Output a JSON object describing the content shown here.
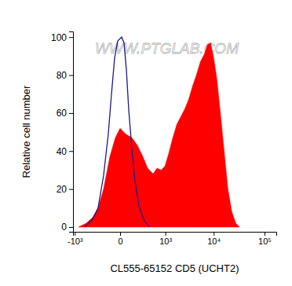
{
  "chart_data": {
    "type": "histogram",
    "x_label": "CL555-65152 CD5 (UCHT2)",
    "y_label": "Relative cell number",
    "annotations": [
      "WWW.PTGLAB.COM"
    ],
    "log": "x",
    "xlim": [
      -1100,
      170000
    ],
    "xticks": [
      {
        "value": -1000,
        "label": "-10³"
      },
      0,
      {
        "value": 1000,
        "label": "10³"
      },
      {
        "value": 10000,
        "label": "10⁴"
      },
      {
        "value": 100000,
        "label": "10⁵"
      }
    ],
    "ylim": [
      -2.5,
      103
    ],
    "yticks": [
      0,
      20,
      40,
      60,
      80,
      100
    ],
    "series": [
      {
        "type": "area",
        "color": "#ff0000",
        "x": [
          -831,
          -538,
          -368,
          -255,
          -166,
          -88,
          -36,
          0,
          42,
          105,
          177,
          269,
          368,
          514,
          642,
          796,
          980,
          1198,
          1461,
          1773,
          2145,
          2590,
          3120,
          3750,
          4510,
          5415,
          6495,
          7505,
          8670,
          10010,
          11550,
          13340,
          15960,
          19080,
          22810,
          27270,
          32520
        ],
        "values": [
          0,
          2,
          5,
          10,
          20,
          37,
          47,
          52,
          49,
          47,
          43,
          37,
          31,
          28,
          31,
          30,
          32,
          39,
          47,
          54,
          58,
          62,
          67,
          74,
          80,
          87,
          91,
          96,
          97,
          89,
          78,
          62,
          41,
          20,
          8,
          2,
          0
        ]
      },
      {
        "type": "line",
        "color": "#1a1a8c",
        "x": [
          -588,
          -368,
          -255,
          -166,
          -105,
          -71,
          -42,
          -17,
          11,
          29,
          49,
          71,
          105,
          144,
          201,
          285,
          406
        ],
        "values": [
          0,
          4,
          10,
          27,
          49,
          70,
          89,
          98,
          100,
          97,
          83,
          62,
          41,
          24,
          11,
          4,
          0
        ]
      }
    ]
  }
}
